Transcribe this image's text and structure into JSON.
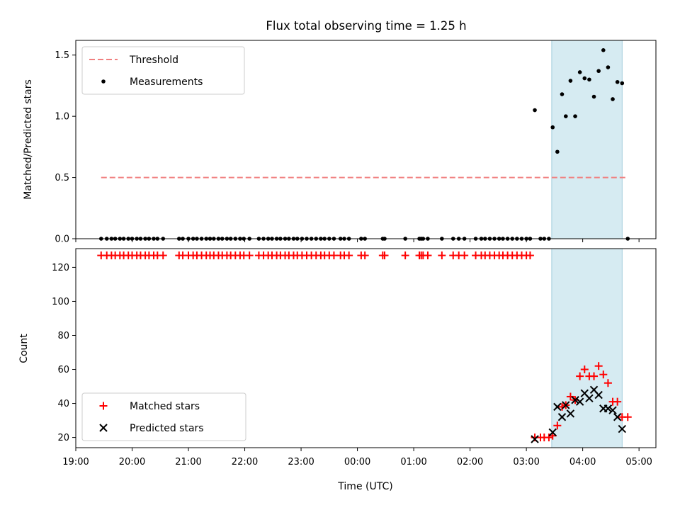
{
  "chart_data": [
    {
      "type": "scatter",
      "title": "Flux total observing time = 1.25 h",
      "ylabel": "Matched/Predicted stars",
      "xlabel": "",
      "xlim": [
        "19:00",
        "05:18"
      ],
      "ylim": [
        0,
        1.62
      ],
      "yticks": [
        "0.0",
        "0.5",
        "1.0",
        "1.5"
      ],
      "highlight_span": [
        "03:27",
        "04:42"
      ],
      "legend": {
        "placement": "upper-left",
        "entries": [
          "Threshold",
          "Measurements"
        ]
      },
      "threshold": {
        "name": "Threshold",
        "value": 0.5,
        "x_range": [
          "19:27",
          "04:48"
        ],
        "color": "#f08080",
        "style": "dashed"
      },
      "series": [
        {
          "name": "Measurements",
          "color": "#000000",
          "points": [
            [
              "19:27",
              0
            ],
            [
              "19:33",
              0
            ],
            [
              "19:38",
              0
            ],
            [
              "19:42",
              0
            ],
            [
              "19:47",
              0
            ],
            [
              "19:51",
              0
            ],
            [
              "19:56",
              0
            ],
            [
              "20:00",
              0
            ],
            [
              "20:05",
              0
            ],
            [
              "20:09",
              0
            ],
            [
              "20:14",
              0
            ],
            [
              "20:18",
              0
            ],
            [
              "20:23",
              0
            ],
            [
              "20:27",
              0
            ],
            [
              "20:33",
              0
            ],
            [
              "20:50",
              0
            ],
            [
              "20:54",
              0
            ],
            [
              "21:00",
              0
            ],
            [
              "21:05",
              0
            ],
            [
              "21:09",
              0
            ],
            [
              "21:14",
              0
            ],
            [
              "21:19",
              0
            ],
            [
              "21:23",
              0
            ],
            [
              "21:27",
              0
            ],
            [
              "21:32",
              0
            ],
            [
              "21:36",
              0
            ],
            [
              "21:41",
              0
            ],
            [
              "21:45",
              0
            ],
            [
              "21:50",
              0
            ],
            [
              "21:55",
              0
            ],
            [
              "21:59",
              0
            ],
            [
              "22:05",
              0
            ],
            [
              "22:15",
              0
            ],
            [
              "22:20",
              0
            ],
            [
              "22:25",
              0
            ],
            [
              "22:29",
              0
            ],
            [
              "22:34",
              0
            ],
            [
              "22:38",
              0
            ],
            [
              "22:43",
              0
            ],
            [
              "22:47",
              0
            ],
            [
              "22:52",
              0
            ],
            [
              "22:56",
              0
            ],
            [
              "23:01",
              0
            ],
            [
              "23:06",
              0
            ],
            [
              "23:11",
              0
            ],
            [
              "23:16",
              0
            ],
            [
              "23:21",
              0
            ],
            [
              "23:25",
              0
            ],
            [
              "23:30",
              0
            ],
            [
              "23:35",
              0
            ],
            [
              "23:42",
              0
            ],
            [
              "23:46",
              0
            ],
            [
              "23:51",
              0
            ],
            [
              "00:04",
              0
            ],
            [
              "00:08",
              0
            ],
            [
              "00:27",
              0
            ],
            [
              "00:29",
              0
            ],
            [
              "00:51",
              0
            ],
            [
              "01:06",
              0
            ],
            [
              "01:08",
              0
            ],
            [
              "01:10",
              0
            ],
            [
              "01:15",
              0
            ],
            [
              "01:30",
              0
            ],
            [
              "01:42",
              0
            ],
            [
              "01:48",
              0
            ],
            [
              "01:54",
              0
            ],
            [
              "02:06",
              0
            ],
            [
              "02:12",
              0
            ],
            [
              "02:16",
              0
            ],
            [
              "02:21",
              0
            ],
            [
              "02:26",
              0
            ],
            [
              "02:31",
              0
            ],
            [
              "02:35",
              0
            ],
            [
              "02:40",
              0
            ],
            [
              "02:45",
              0
            ],
            [
              "02:50",
              0
            ],
            [
              "02:55",
              0
            ],
            [
              "03:00",
              0
            ],
            [
              "03:04",
              0
            ],
            [
              "03:09",
              1.05
            ],
            [
              "03:15",
              0
            ],
            [
              "03:19",
              0
            ],
            [
              "03:24",
              0
            ],
            [
              "03:28",
              0.91
            ],
            [
              "03:33",
              0.71
            ],
            [
              "03:38",
              1.18
            ],
            [
              "03:42",
              1.0
            ],
            [
              "03:47",
              1.29
            ],
            [
              "03:52",
              1.0
            ],
            [
              "03:57",
              1.36
            ],
            [
              "04:02",
              1.31
            ],
            [
              "04:07",
              1.3
            ],
            [
              "04:12",
              1.16
            ],
            [
              "04:17",
              1.37
            ],
            [
              "04:22",
              1.54
            ],
            [
              "04:27",
              1.4
            ],
            [
              "04:32",
              1.14
            ],
            [
              "04:37",
              1.28
            ],
            [
              "04:42",
              1.27
            ],
            [
              "04:48",
              0
            ]
          ]
        }
      ]
    },
    {
      "type": "scatter",
      "xlabel": "Time (UTC)",
      "ylabel": "Count",
      "xlim": [
        "19:00",
        "05:18"
      ],
      "ylim": [
        14,
        131
      ],
      "yticks": [
        "20",
        "40",
        "60",
        "80",
        "100",
        "120"
      ],
      "xticks": [
        "19:00",
        "20:00",
        "21:00",
        "22:00",
        "23:00",
        "00:00",
        "01:00",
        "02:00",
        "03:00",
        "04:00",
        "05:00"
      ],
      "highlight_span": [
        "03:27",
        "04:42"
      ],
      "legend": {
        "placement": "lower-left",
        "entries": [
          "Matched stars",
          "Predicted stars"
        ]
      },
      "matched_constant": {
        "value": 127,
        "times": [
          "19:27",
          "19:33",
          "19:38",
          "19:42",
          "19:47",
          "19:51",
          "19:56",
          "20:00",
          "20:05",
          "20:09",
          "20:14",
          "20:18",
          "20:23",
          "20:27",
          "20:33",
          "20:50",
          "20:54",
          "21:00",
          "21:05",
          "21:09",
          "21:14",
          "21:19",
          "21:23",
          "21:27",
          "21:32",
          "21:36",
          "21:41",
          "21:45",
          "21:50",
          "21:55",
          "21:59",
          "22:05",
          "22:15",
          "22:20",
          "22:25",
          "22:29",
          "22:34",
          "22:38",
          "22:43",
          "22:47",
          "22:52",
          "22:56",
          "23:01",
          "23:06",
          "23:11",
          "23:16",
          "23:21",
          "23:25",
          "23:30",
          "23:35",
          "23:42",
          "23:46",
          "23:51",
          "00:04",
          "00:08",
          "00:27",
          "00:29",
          "00:51",
          "01:06",
          "01:08",
          "01:10",
          "01:15",
          "01:30",
          "01:42",
          "01:48",
          "01:54",
          "02:06",
          "02:12",
          "02:16",
          "02:21",
          "02:26",
          "02:31",
          "02:35",
          "02:40",
          "02:45",
          "02:50",
          "02:55",
          "03:00",
          "03:04"
        ]
      },
      "series": [
        {
          "name": "Matched stars",
          "color": "#ff0000",
          "marker": "+",
          "points": [
            [
              "03:09",
              20
            ],
            [
              "03:15",
              20
            ],
            [
              "03:19",
              20
            ],
            [
              "03:24",
              20
            ],
            [
              "03:28",
              21
            ],
            [
              "03:33",
              27
            ],
            [
              "03:38",
              38
            ],
            [
              "03:42",
              39
            ],
            [
              "03:47",
              44
            ],
            [
              "03:52",
              42
            ],
            [
              "03:57",
              56
            ],
            [
              "04:02",
              60
            ],
            [
              "04:07",
              56
            ],
            [
              "04:12",
              56
            ],
            [
              "04:17",
              62
            ],
            [
              "04:22",
              57
            ],
            [
              "04:27",
              52
            ],
            [
              "04:32",
              41
            ],
            [
              "04:37",
              41
            ],
            [
              "04:42",
              32
            ],
            [
              "04:48",
              32
            ]
          ]
        },
        {
          "name": "Predicted stars",
          "color": "#000000",
          "marker": "x",
          "points": [
            [
              "03:09",
              19
            ],
            [
              "03:28",
              23
            ],
            [
              "03:33",
              38
            ],
            [
              "03:38",
              32
            ],
            [
              "03:42",
              39
            ],
            [
              "03:47",
              34
            ],
            [
              "03:52",
              42
            ],
            [
              "03:57",
              41
            ],
            [
              "04:02",
              46
            ],
            [
              "04:07",
              43
            ],
            [
              "04:12",
              48
            ],
            [
              "04:17",
              45
            ],
            [
              "04:22",
              37
            ],
            [
              "04:27",
              37
            ],
            [
              "04:32",
              36
            ],
            [
              "04:37",
              32
            ],
            [
              "04:42",
              25
            ]
          ]
        }
      ]
    }
  ]
}
